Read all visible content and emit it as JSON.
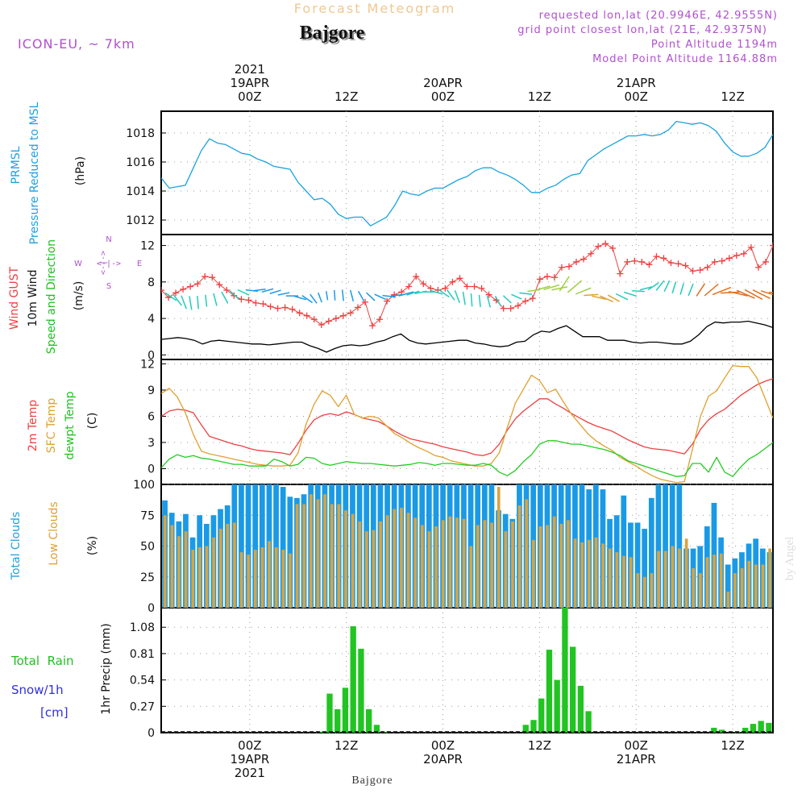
{
  "header": {
    "product": "Forecast Meteogram",
    "location": "Bajgore",
    "model": "ICON-EU, ~ 7km",
    "requested": "requested lon,lat (20.9946E, 42.9555N)",
    "gridpoint": "grid point closest lon,lat (21E, 42.9375N)",
    "point_alt": "Point Altitude 1194m",
    "model_alt": "Model Point Altitude 1164.88m"
  },
  "footer": {
    "location": "Bajgore",
    "watermark": "by Angel"
  },
  "time_axis": {
    "ticks": [
      {
        "hour": 12,
        "top": [
          "2021",
          "19APR",
          "00Z"
        ],
        "bottom": [
          "00Z",
          "19APR",
          "2021"
        ]
      },
      {
        "hour": 24,
        "top": [
          "12Z"
        ],
        "bottom": [
          "12Z"
        ]
      },
      {
        "hour": 36,
        "top": [
          "20APR",
          "00Z"
        ],
        "bottom": [
          "00Z",
          "20APR"
        ]
      },
      {
        "hour": 48,
        "top": [
          "12Z"
        ],
        "bottom": [
          "12Z"
        ]
      },
      {
        "hour": 60,
        "top": [
          "21APR",
          "00Z"
        ],
        "bottom": [
          "00Z",
          "21APR"
        ]
      },
      {
        "hour": 72,
        "top": [
          "12Z"
        ],
        "bottom": [
          "12Z"
        ]
      }
    ]
  },
  "panel_labels": {
    "pressure": {
      "line1": "PRMSL",
      "line2": "Pressure Reduced to MSL",
      "unit": "(hPa)"
    },
    "wind": {
      "line1": "Wind GUST",
      "line2": "10m Wind",
      "line3": "Speed and Direction",
      "unit": "(m/s)",
      "compass_ns": [
        "N",
        "S"
      ],
      "compass_we": [
        "W",
        "E"
      ],
      "compass_arrows": "<-|->"
    },
    "temp": {
      "line1": "2m Temp",
      "line2": "SFC Temp",
      "line3": "dewpt Temp",
      "unit": "(C)"
    },
    "clouds": {
      "line1": "Total Clouds",
      "line2": "Low Clouds",
      "unit": "(%)"
    },
    "precip": {
      "line1": "Total  Rain",
      "line2": "Snow/1h",
      "line3": "[cm]",
      "unit": "1hr Precip (mm)"
    }
  },
  "colors": {
    "pressure": "#1aa3e0",
    "gust": "#ee4040",
    "wind10m": "#000000",
    "temp2m": "#ee4040",
    "sfc": "#e0a030",
    "dewpt": "#22cc22",
    "total_clouds": "#1a9ae6",
    "low_clouds": "#d9a441",
    "rain": "#22c422",
    "title": "#f0c890",
    "purple": "#b050d0",
    "cyan": "#20a0e0",
    "green": "#20c020",
    "blue": "#3030e0",
    "orange": "#e0a030"
  },
  "chart_data": [
    {
      "type": "line",
      "title": "PRMSL Pressure Reduced to MSL",
      "ylabel": "(hPa)",
      "x_start_hour": 1,
      "x_end_hour": 77,
      "ylim": [
        1011,
        1019.5
      ],
      "yticks": [
        1012,
        1014,
        1016,
        1018
      ],
      "series": [
        {
          "name": "PRMSL",
          "values": [
            1014.9,
            1014.2,
            1014.3,
            1014.4,
            1015.6,
            1016.8,
            1017.6,
            1017.3,
            1017.2,
            1016.9,
            1016.6,
            1016.5,
            1016.2,
            1016.0,
            1015.7,
            1015.6,
            1015.5,
            1014.6,
            1014.0,
            1013.4,
            1013.5,
            1013.1,
            1012.4,
            1012.1,
            1012.2,
            1012.2,
            1011.6,
            1011.9,
            1012.2,
            1013.0,
            1014.0,
            1013.8,
            1013.7,
            1014.0,
            1014.2,
            1014.2,
            1014.5,
            1014.8,
            1015.0,
            1015.4,
            1015.6,
            1015.6,
            1015.3,
            1015.1,
            1014.8,
            1014.4,
            1013.9,
            1013.9,
            1014.2,
            1014.4,
            1014.8,
            1015.1,
            1015.2,
            1016.1,
            1016.5,
            1016.9,
            1017.2,
            1017.5,
            1017.8,
            1017.8,
            1017.9,
            1017.8,
            1017.9,
            1018.2,
            1018.8,
            1018.7,
            1018.6,
            1018.7,
            1018.5,
            1018.1,
            1017.3,
            1016.7,
            1016.4,
            1016.4,
            1016.6,
            1017.0,
            1017.9
          ]
        }
      ]
    },
    {
      "type": "line",
      "title": "Wind GUST / 10m Wind Speed and Direction",
      "ylabel": "(m/s)",
      "x_start_hour": 1,
      "x_end_hour": 77,
      "ylim": [
        -0.5,
        13.2
      ],
      "yticks": [
        0,
        4,
        8,
        12
      ],
      "series": [
        {
          "name": "Wind GUST",
          "values": [
            7.1,
            6.3,
            6.8,
            7.2,
            7.5,
            7.8,
            8.6,
            8.5,
            7.7,
            7.1,
            6.5,
            6.1,
            6.0,
            5.7,
            5.6,
            5.3,
            5.1,
            5.2,
            5.0,
            4.6,
            4.3,
            3.9,
            3.3,
            3.7,
            4.0,
            4.3,
            4.6,
            5.2,
            5.8,
            3.2,
            3.9,
            5.9,
            6.6,
            6.9,
            7.5,
            8.6,
            7.8,
            7.3,
            7.1,
            7.3,
            8.0,
            8.4,
            7.5,
            7.5,
            7.3,
            6.6,
            6.0,
            5.1,
            5.1,
            5.4,
            5.9,
            6.2,
            8.3,
            8.6,
            8.5,
            9.6,
            9.7,
            10.2,
            10.5,
            11.1,
            11.9,
            12.2,
            11.7,
            8.9,
            10.2,
            10.3,
            10.2,
            9.9,
            10.8,
            10.6,
            10.1,
            10.0,
            9.8,
            9.2,
            9.3,
            9.6,
            10.2,
            10.3,
            10.6,
            10.9,
            11.1,
            11.8,
            9.6,
            10.2,
            12.0
          ]
        },
        {
          "name": "10m Wind",
          "values": [
            1.7,
            1.8,
            1.9,
            1.8,
            1.6,
            1.2,
            1.5,
            1.6,
            1.5,
            1.4,
            1.3,
            1.2,
            1.2,
            1.1,
            1.2,
            1.3,
            1.4,
            1.4,
            1.0,
            0.7,
            0.3,
            0.7,
            1.0,
            1.1,
            1.0,
            1.1,
            1.4,
            1.6,
            2.0,
            2.3,
            1.6,
            1.3,
            1.2,
            1.3,
            1.4,
            1.5,
            1.6,
            1.6,
            1.3,
            1.2,
            1.0,
            0.9,
            1.0,
            1.4,
            1.5,
            2.2,
            2.6,
            2.5,
            2.9,
            3.2,
            2.6,
            2.0,
            2.0,
            2.0,
            1.6,
            1.6,
            1.6,
            1.4,
            1.3,
            1.4,
            1.4,
            1.3,
            1.2,
            1.2,
            1.5,
            2.2,
            3.1,
            3.6,
            3.5,
            3.6,
            3.6,
            3.7,
            3.5,
            3.3,
            3.0
          ]
        }
      ]
    },
    {
      "type": "line",
      "title": "2m Temp / SFC Temp / dewpt Temp",
      "ylabel": "(C)",
      "x_start_hour": 1,
      "x_end_hour": 77,
      "ylim": [
        -1.8,
        12.5
      ],
      "yticks": [
        0,
        3,
        6,
        9,
        12
      ],
      "series": [
        {
          "name": "2m Temp",
          "values": [
            6.0,
            6.6,
            6.8,
            6.7,
            6.4,
            5.0,
            3.7,
            3.4,
            3.1,
            2.8,
            2.6,
            2.3,
            2.1,
            2.0,
            1.9,
            1.8,
            1.6,
            2.9,
            4.4,
            5.6,
            6.1,
            6.3,
            6.1,
            6.5,
            6.2,
            5.8,
            5.6,
            5.4,
            4.9,
            4.3,
            3.8,
            3.4,
            3.2,
            3.0,
            2.8,
            2.5,
            2.3,
            2.1,
            1.9,
            1.6,
            1.5,
            1.8,
            2.8,
            4.4,
            5.7,
            6.6,
            7.3,
            8.0,
            8.0,
            7.4,
            6.9,
            6.3,
            5.8,
            5.3,
            4.9,
            4.6,
            4.3,
            3.8,
            3.3,
            2.9,
            2.5,
            2.3,
            2.2,
            2.1,
            1.9,
            1.7,
            2.8,
            4.5,
            5.6,
            6.3,
            6.8,
            7.6,
            8.4,
            9.0,
            9.6,
            10.0,
            10.3,
            10.4,
            10.2,
            9.5,
            8.6,
            7.6
          ]
        },
        {
          "name": "SFC Temp",
          "values": [
            8.6,
            9.2,
            8.2,
            6.4,
            3.9,
            2.0,
            1.7,
            1.5,
            1.3,
            1.1,
            0.9,
            0.7,
            0.5,
            0.4,
            0.3,
            0.3,
            0.4,
            1.8,
            5.1,
            7.4,
            8.9,
            8.4,
            7.1,
            8.4,
            6.2,
            5.8,
            6.0,
            5.8,
            4.9,
            4.0,
            3.5,
            2.9,
            2.4,
            2.0,
            1.5,
            1.3,
            0.9,
            0.7,
            0.5,
            0.3,
            0.3,
            0.6,
            1.8,
            4.7,
            7.5,
            9.1,
            10.7,
            10.1,
            8.7,
            9.1,
            7.6,
            6.2,
            5.1,
            4.0,
            3.2,
            2.6,
            2.1,
            1.3,
            0.8,
            0.3,
            -0.3,
            -0.8,
            -1.2,
            -1.4,
            -1.6,
            -1.5,
            2.2,
            6.0,
            8.3,
            8.9,
            10.4,
            11.8,
            11.7,
            11.7,
            10.4,
            8.1,
            5.8
          ]
        },
        {
          "name": "dewpt Temp",
          "values": [
            0.1,
            1.1,
            1.6,
            1.3,
            1.5,
            1.2,
            1.1,
            0.9,
            0.7,
            0.5,
            0.5,
            0.3,
            0.3,
            0.3,
            1.1,
            0.8,
            0.3,
            0.5,
            1.3,
            1.2,
            0.6,
            0.4,
            0.6,
            0.8,
            0.7,
            0.6,
            0.6,
            0.5,
            0.4,
            0.3,
            0.4,
            0.5,
            0.7,
            0.6,
            0.4,
            0.6,
            0.6,
            0.5,
            0.4,
            0.4,
            0.6,
            0.4,
            -0.4,
            -0.8,
            -0.2,
            0.8,
            1.6,
            2.8,
            3.2,
            3.2,
            3.0,
            2.8,
            2.8,
            2.6,
            2.4,
            2.2,
            1.9,
            1.5,
            0.9,
            0.6,
            0.3,
            0.0,
            -0.3,
            -0.6,
            -0.9,
            -0.8,
            0.6,
            0.6,
            -0.4,
            1.3,
            -0.4,
            -0.9,
            0.2,
            1.1,
            1.6,
            2.3,
            3.0,
            3.0
          ]
        }
      ]
    },
    {
      "type": "bar",
      "title": "Total Clouds / Low Clouds",
      "ylabel": "(%)",
      "x_start_hour": 1,
      "ylim": [
        0,
        100
      ],
      "yticks": [
        0,
        25,
        50,
        75,
        100
      ],
      "series": [
        {
          "name": "Total Clouds",
          "values": [
            87,
            77,
            70,
            76,
            57,
            75,
            68,
            75,
            80,
            83,
            100,
            100,
            100,
            100,
            100,
            100,
            100,
            98,
            90,
            89,
            92,
            100,
            100,
            100,
            100,
            100,
            100,
            100,
            100,
            100,
            100,
            100,
            100,
            100,
            100,
            100,
            100,
            100,
            100,
            100,
            100,
            100,
            100,
            100,
            100,
            100,
            100,
            100,
            79,
            76,
            72,
            100,
            100,
            100,
            100,
            100,
            100,
            100,
            100,
            100,
            100,
            96,
            100,
            96,
            72,
            75,
            91,
            69,
            69,
            64,
            89,
            100,
            100,
            100,
            100,
            48,
            48,
            50,
            66,
            85,
            57,
            35,
            40,
            45,
            52,
            56,
            48,
            45
          ]
        },
        {
          "name": "Low Clouds",
          "values": [
            75,
            67,
            58,
            62,
            47,
            49,
            50,
            57,
            64,
            68,
            69,
            45,
            43,
            47,
            49,
            54,
            49,
            47,
            44,
            84,
            84,
            92,
            88,
            92,
            84,
            84,
            79,
            76,
            70,
            62,
            63,
            70,
            75,
            80,
            81,
            77,
            73,
            67,
            62,
            66,
            71,
            74,
            73,
            72,
            50,
            67,
            71,
            69,
            98,
            62,
            70,
            83,
            88,
            55,
            66,
            67,
            74,
            68,
            71,
            56,
            53,
            55,
            57,
            52,
            48,
            45,
            42,
            41,
            28,
            25,
            28,
            46,
            46,
            50,
            48,
            56,
            32,
            28,
            41,
            43,
            44,
            13,
            28,
            32,
            38,
            35,
            35,
            48
          ]
        }
      ]
    },
    {
      "type": "bar",
      "title": "1hr Precip",
      "ylabel": "1hr Precip (mm)",
      "x_start_hour": 1,
      "ylim": [
        0,
        1.28
      ],
      "yticks": [
        0,
        0.27,
        0.54,
        0.81,
        1.08
      ],
      "series": [
        {
          "name": "1hr Precip",
          "values": [
            0,
            0,
            0,
            0,
            0,
            0,
            0,
            0,
            0,
            0,
            0,
            0,
            0,
            0,
            0,
            0,
            0,
            0,
            0,
            0,
            0.01,
            0.4,
            0.24,
            0.46,
            1.09,
            0.86,
            0.24,
            0.08,
            0.01,
            0,
            0,
            0,
            0,
            0,
            0,
            0,
            0,
            0,
            0,
            0,
            0,
            0,
            0,
            0,
            0,
            0,
            0.08,
            0.13,
            0.35,
            0.85,
            0.54,
            1.28,
            0.88,
            0.48,
            0.22,
            0,
            0,
            0,
            0,
            0,
            0,
            0,
            0,
            0,
            0,
            0,
            0,
            0,
            0,
            0,
            0.05,
            0.03,
            0,
            0.01,
            0.05,
            0.09,
            0.12,
            0.1
          ]
        }
      ]
    }
  ]
}
